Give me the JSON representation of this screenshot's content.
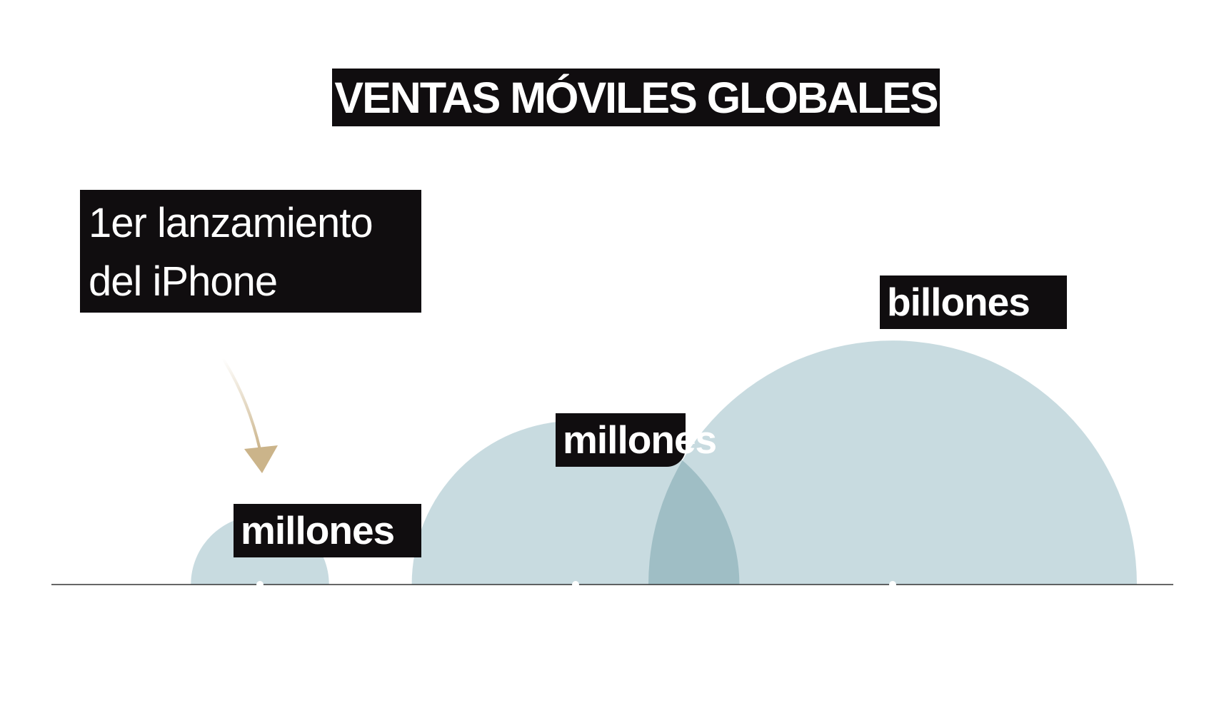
{
  "chart_data": {
    "type": "bubble",
    "title": "VENTAS MÓVILES GLOBALES",
    "annotation": "1er lanzamiento\ndel iPhone",
    "points": [
      {
        "label": "millones",
        "relative_size": 0.08
      },
      {
        "label": "millones",
        "relative_size": 0.45
      },
      {
        "label": "billones",
        "relative_size": 1.0
      }
    ],
    "annotated_point_index": 0,
    "colors": {
      "bubble": "#c5d9de",
      "bubble_overlap": "#9fbec5",
      "baseline": "#333333",
      "label_bg": "#100d0f",
      "arrow": "#cbb48a"
    }
  }
}
